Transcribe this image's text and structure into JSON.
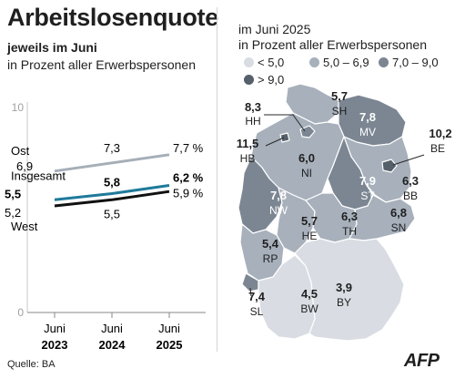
{
  "title": "Arbeitslosenquote",
  "subtitle": "jeweils im Juni",
  "subtitle2": "in Prozent aller Erwerbspersonen",
  "map_title": "im Juni 2025",
  "map_subtitle": "in Prozent aller Erwerbspersonen",
  "legend": [
    {
      "label": "< 5,0",
      "color": "#d9dde3"
    },
    {
      "label": "5,0 – 6,9",
      "color": "#a7b0bb"
    },
    {
      "label": "7,0 – 9,0",
      "color": "#7c8693"
    },
    {
      "label": "> 9,0",
      "color": "#56606b"
    }
  ],
  "source": "Quelle: BA",
  "logo": "AFP",
  "chart_data": [
    {
      "type": "line",
      "x": [
        "2023",
        "2024",
        "2025"
      ],
      "x_tick_labels": [
        [
          "Juni",
          "2023"
        ],
        [
          "Juni",
          "2024"
        ],
        [
          "Juni",
          "2025"
        ]
      ],
      "ylim": [
        0,
        10
      ],
      "y_ticks": [
        {
          "value": 0,
          "label": "0"
        },
        {
          "value": 10,
          "label": "10"
        }
      ],
      "grid": false,
      "series": [
        {
          "name": "Ost",
          "values": [
            6.9,
            7.3,
            7.7
          ],
          "labels": [
            "6,9",
            "7,3",
            "7,7 %"
          ],
          "color": "#a6aeb8"
        },
        {
          "name": "Insgesamt",
          "values": [
            5.5,
            5.8,
            6.2
          ],
          "labels": [
            "5,5",
            "5,8",
            "6,2 %"
          ],
          "color": "#1f7a9b"
        },
        {
          "name": "West",
          "values": [
            5.2,
            5.5,
            5.9
          ],
          "labels": [
            "5,2",
            "5,5",
            "5,9 %"
          ],
          "color": "#111111"
        }
      ]
    },
    {
      "type": "choropleth",
      "regions": [
        {
          "code": "SH",
          "value": 5.7,
          "label": "5,7"
        },
        {
          "code": "HH",
          "value": 8.3,
          "label": "8,3"
        },
        {
          "code": "MV",
          "value": 7.8,
          "label": "7,8"
        },
        {
          "code": "HB",
          "value": 11.5,
          "label": "11,5"
        },
        {
          "code": "BE",
          "value": 10.2,
          "label": "10,2"
        },
        {
          "code": "NI",
          "value": 6.0,
          "label": "6,0"
        },
        {
          "code": "ST",
          "value": 7.9,
          "label": "7,9"
        },
        {
          "code": "BB",
          "value": 6.3,
          "label": "6,3"
        },
        {
          "code": "NW",
          "value": 7.8,
          "label": "7,8"
        },
        {
          "code": "HE",
          "value": 5.7,
          "label": "5,7"
        },
        {
          "code": "TH",
          "value": 6.3,
          "label": "6,3"
        },
        {
          "code": "SN",
          "value": 6.8,
          "label": "6,8"
        },
        {
          "code": "RP",
          "value": 5.4,
          "label": "5,4"
        },
        {
          "code": "SL",
          "value": 7.4,
          "label": "7,4"
        },
        {
          "code": "BW",
          "value": 4.5,
          "label": "4,5"
        },
        {
          "code": "BY",
          "value": 3.9,
          "label": "3,9"
        }
      ]
    }
  ]
}
